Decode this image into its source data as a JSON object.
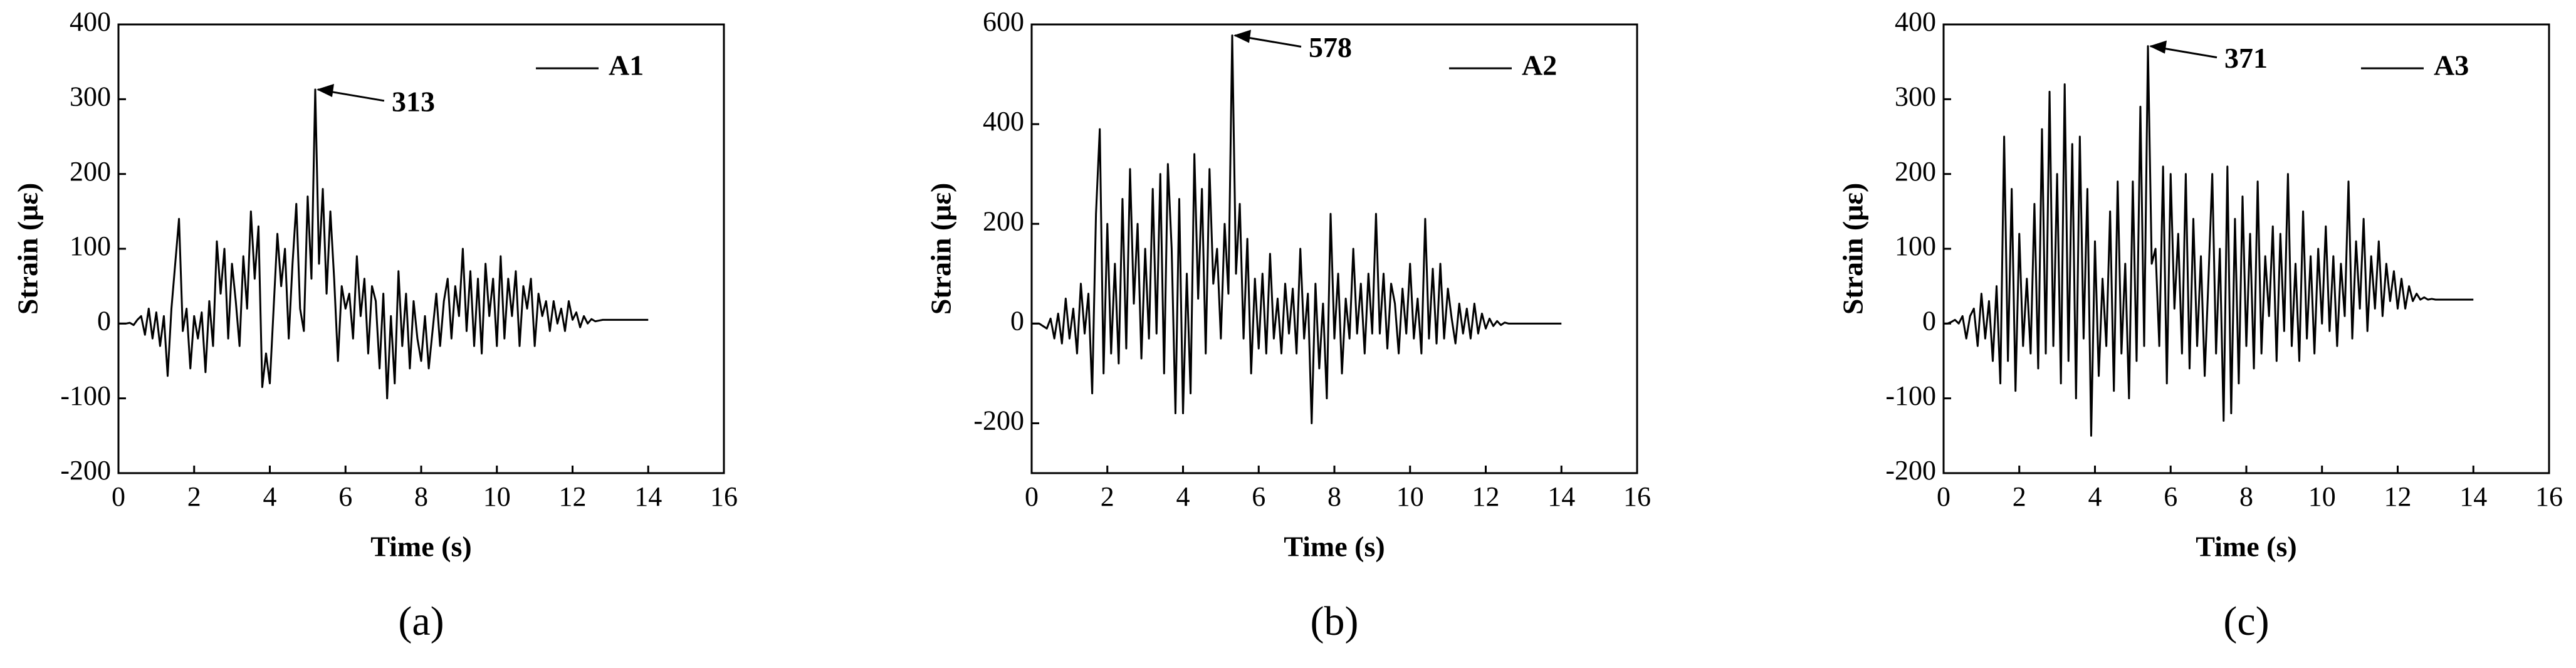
{
  "chart_data": [
    {
      "type": "line",
      "xlabel": "Time (s)",
      "ylabel": "Strain (με)",
      "caption": "(a)",
      "annotation": "313",
      "xlim": [
        0,
        16
      ],
      "xticks": [
        0,
        2,
        4,
        6,
        8,
        10,
        12,
        14,
        16
      ],
      "ylim": [
        -200,
        400
      ],
      "yticks": [
        -200,
        -100,
        0,
        100,
        200,
        300,
        400
      ],
      "legend": "upper right",
      "x": [
        0,
        0.1,
        0.2,
        0.3,
        0.4,
        0.5,
        0.6,
        0.7,
        0.8,
        0.9,
        1,
        1.1,
        1.2,
        1.3,
        1.4,
        1.5,
        1.6,
        1.7,
        1.8,
        1.9,
        2,
        2.1,
        2.2,
        2.3,
        2.4,
        2.5,
        2.6,
        2.7,
        2.8,
        2.9,
        3,
        3.1,
        3.2,
        3.3,
        3.4,
        3.5,
        3.6,
        3.7,
        3.8,
        3.9,
        4,
        4.1,
        4.2,
        4.3,
        4.4,
        4.5,
        4.6,
        4.7,
        4.8,
        4.9,
        5,
        5.1,
        5.2,
        5.3,
        5.4,
        5.5,
        5.6,
        5.7,
        5.8,
        5.9,
        6,
        6.1,
        6.2,
        6.3,
        6.4,
        6.5,
        6.6,
        6.7,
        6.8,
        6.9,
        7,
        7.1,
        7.2,
        7.3,
        7.4,
        7.5,
        7.6,
        7.7,
        7.8,
        7.9,
        8,
        8.1,
        8.2,
        8.3,
        8.4,
        8.5,
        8.6,
        8.7,
        8.8,
        8.9,
        9,
        9.1,
        9.2,
        9.3,
        9.4,
        9.5,
        9.6,
        9.7,
        9.8,
        9.9,
        10,
        10.1,
        10.2,
        10.3,
        10.4,
        10.5,
        10.6,
        10.7,
        10.8,
        10.9,
        11,
        11.1,
        11.2,
        11.3,
        11.4,
        11.5,
        11.6,
        11.7,
        11.8,
        11.9,
        12,
        12.1,
        12.2,
        12.3,
        12.4,
        12.5,
        12.6,
        12.7,
        12.8,
        12.9,
        13,
        13.1,
        13.2,
        13.3,
        13.4,
        13.5,
        13.6,
        13.7,
        13.8,
        13.9,
        14
      ],
      "series": [
        {
          "name": "A1",
          "color": "#000000",
          "values": [
            0,
            0,
            0,
            1,
            -2,
            5,
            10,
            -15,
            20,
            -20,
            15,
            -30,
            10,
            -70,
            20,
            80,
            140,
            -10,
            20,
            -60,
            10,
            -20,
            15,
            -65,
            30,
            -30,
            110,
            40,
            100,
            -20,
            80,
            30,
            -30,
            90,
            20,
            150,
            60,
            130,
            -85,
            -40,
            -80,
            20,
            120,
            50,
            100,
            -20,
            80,
            160,
            20,
            -10,
            170,
            60,
            313,
            80,
            180,
            40,
            150,
            60,
            -50,
            50,
            20,
            40,
            -20,
            90,
            10,
            60,
            -40,
            50,
            30,
            -60,
            40,
            -100,
            10,
            -80,
            70,
            -30,
            40,
            -60,
            30,
            -20,
            -50,
            10,
            -60,
            -10,
            40,
            -30,
            30,
            60,
            -20,
            50,
            10,
            100,
            -10,
            70,
            -30,
            60,
            -40,
            80,
            10,
            60,
            -30,
            90,
            -20,
            60,
            10,
            70,
            -30,
            50,
            20,
            60,
            -30,
            40,
            10,
            30,
            -10,
            30,
            0,
            20,
            -10,
            30,
            5,
            15,
            -5,
            10,
            0,
            6,
            3,
            4,
            5,
            5,
            5,
            5,
            5,
            5,
            5,
            5,
            5,
            5,
            5,
            5,
            5
          ]
        }
      ]
    },
    {
      "type": "line",
      "xlabel": "Time (s)",
      "ylabel": "Strain (με)",
      "caption": "(b)",
      "annotation": "578",
      "xlim": [
        0,
        16
      ],
      "xticks": [
        0,
        2,
        4,
        6,
        8,
        10,
        12,
        14,
        16
      ],
      "ylim": [
        -300,
        600
      ],
      "yticks": [
        -200,
        0,
        200,
        400,
        600
      ],
      "legend": "upper right",
      "x": [
        0,
        0.1,
        0.2,
        0.3,
        0.4,
        0.5,
        0.6,
        0.7,
        0.8,
        0.9,
        1,
        1.1,
        1.2,
        1.3,
        1.4,
        1.5,
        1.6,
        1.7,
        1.8,
        1.9,
        2,
        2.1,
        2.2,
        2.3,
        2.4,
        2.5,
        2.6,
        2.7,
        2.8,
        2.9,
        3,
        3.1,
        3.2,
        3.3,
        3.4,
        3.5,
        3.6,
        3.7,
        3.8,
        3.9,
        4,
        4.1,
        4.2,
        4.3,
        4.4,
        4.5,
        4.6,
        4.7,
        4.8,
        4.9,
        5,
        5.1,
        5.2,
        5.3,
        5.4,
        5.5,
        5.6,
        5.7,
        5.8,
        5.9,
        6,
        6.1,
        6.2,
        6.3,
        6.4,
        6.5,
        6.6,
        6.7,
        6.8,
        6.9,
        7,
        7.1,
        7.2,
        7.3,
        7.4,
        7.5,
        7.6,
        7.7,
        7.8,
        7.9,
        8,
        8.1,
        8.2,
        8.3,
        8.4,
        8.5,
        8.6,
        8.7,
        8.8,
        8.9,
        9,
        9.1,
        9.2,
        9.3,
        9.4,
        9.5,
        9.6,
        9.7,
        9.8,
        9.9,
        10,
        10.1,
        10.2,
        10.3,
        10.4,
        10.5,
        10.6,
        10.7,
        10.8,
        10.9,
        11,
        11.1,
        11.2,
        11.3,
        11.4,
        11.5,
        11.6,
        11.7,
        11.8,
        11.9,
        12,
        12.1,
        12.2,
        12.3,
        12.4,
        12.5,
        12.6,
        12.7,
        12.8,
        12.9,
        13,
        13.1,
        13.2,
        13.3,
        13.4,
        13.5,
        13.6,
        13.7,
        13.8,
        13.9,
        14
      ],
      "series": [
        {
          "name": "A2",
          "color": "#000000",
          "values": [
            0,
            0,
            0,
            -5,
            -10,
            10,
            -30,
            20,
            -40,
            50,
            -30,
            30,
            -60,
            80,
            -20,
            60,
            -140,
            220,
            390,
            -100,
            200,
            -60,
            120,
            -80,
            250,
            -50,
            310,
            40,
            200,
            -70,
            150,
            -30,
            270,
            -20,
            300,
            -100,
            320,
            150,
            -180,
            250,
            -180,
            100,
            -140,
            340,
            50,
            270,
            -60,
            310,
            80,
            150,
            -30,
            200,
            60,
            578,
            100,
            240,
            -30,
            170,
            -100,
            90,
            -50,
            100,
            -60,
            140,
            -30,
            50,
            -60,
            80,
            -20,
            70,
            -60,
            150,
            -30,
            60,
            -200,
            80,
            -90,
            40,
            -150,
            220,
            -30,
            100,
            -100,
            50,
            -30,
            150,
            -20,
            80,
            -60,
            100,
            -20,
            220,
            -20,
            100,
            -50,
            80,
            40,
            -60,
            70,
            -20,
            120,
            -30,
            50,
            -60,
            210,
            -30,
            110,
            -40,
            120,
            -30,
            70,
            10,
            -40,
            40,
            -20,
            30,
            -30,
            40,
            -20,
            20,
            -10,
            10,
            -5,
            5,
            -3,
            2,
            0,
            0,
            0,
            0,
            0,
            0,
            0,
            0,
            0,
            0,
            0,
            0,
            0,
            0,
            0
          ]
        }
      ]
    },
    {
      "type": "line",
      "xlabel": "Time (s)",
      "ylabel": "Strain (με)",
      "caption": "(c)",
      "annotation": "371",
      "xlim": [
        0,
        16
      ],
      "xticks": [
        0,
        2,
        4,
        6,
        8,
        10,
        12,
        14,
        16
      ],
      "ylim": [
        -200,
        400
      ],
      "yticks": [
        -200,
        -100,
        0,
        100,
        200,
        300,
        400
      ],
      "legend": "upper right",
      "x": [
        0,
        0.1,
        0.2,
        0.3,
        0.4,
        0.5,
        0.6,
        0.7,
        0.8,
        0.9,
        1,
        1.1,
        1.2,
        1.3,
        1.4,
        1.5,
        1.6,
        1.7,
        1.8,
        1.9,
        2,
        2.1,
        2.2,
        2.3,
        2.4,
        2.5,
        2.6,
        2.7,
        2.8,
        2.9,
        3,
        3.1,
        3.2,
        3.3,
        3.4,
        3.5,
        3.6,
        3.7,
        3.8,
        3.9,
        4,
        4.1,
        4.2,
        4.3,
        4.4,
        4.5,
        4.6,
        4.7,
        4.8,
        4.9,
        5,
        5.1,
        5.2,
        5.3,
        5.4,
        5.5,
        5.6,
        5.7,
        5.8,
        5.9,
        6,
        6.1,
        6.2,
        6.3,
        6.4,
        6.5,
        6.6,
        6.7,
        6.8,
        6.9,
        7,
        7.1,
        7.2,
        7.3,
        7.4,
        7.5,
        7.6,
        7.7,
        7.8,
        7.9,
        8,
        8.1,
        8.2,
        8.3,
        8.4,
        8.5,
        8.6,
        8.7,
        8.8,
        8.9,
        9,
        9.1,
        9.2,
        9.3,
        9.4,
        9.5,
        9.6,
        9.7,
        9.8,
        9.9,
        10,
        10.1,
        10.2,
        10.3,
        10.4,
        10.5,
        10.6,
        10.7,
        10.8,
        10.9,
        11,
        11.1,
        11.2,
        11.3,
        11.4,
        11.5,
        11.6,
        11.7,
        11.8,
        11.9,
        12,
        12.1,
        12.2,
        12.3,
        12.4,
        12.5,
        12.6,
        12.7,
        12.8,
        12.9,
        13,
        13.1,
        13.2,
        13.3,
        13.4,
        13.5,
        13.6,
        13.7,
        13.8,
        13.9,
        14
      ],
      "series": [
        {
          "name": "A3",
          "color": "#000000",
          "values": [
            0,
            0,
            2,
            5,
            0,
            10,
            -20,
            10,
            20,
            -30,
            40,
            -20,
            30,
            -50,
            50,
            -80,
            250,
            -50,
            180,
            -90,
            120,
            -30,
            60,
            -40,
            160,
            -60,
            260,
            -40,
            310,
            -30,
            200,
            -80,
            320,
            -50,
            240,
            -100,
            250,
            -20,
            180,
            -150,
            110,
            -70,
            60,
            -30,
            150,
            -90,
            190,
            -40,
            80,
            -100,
            190,
            -50,
            290,
            -30,
            371,
            80,
            100,
            -30,
            210,
            -80,
            200,
            20,
            120,
            -40,
            200,
            -60,
            140,
            -30,
            90,
            -70,
            60,
            200,
            -40,
            100,
            -130,
            210,
            -120,
            140,
            -80,
            170,
            -30,
            120,
            -60,
            190,
            -40,
            90,
            10,
            130,
            -50,
            120,
            -10,
            200,
            -30,
            80,
            -50,
            150,
            -20,
            90,
            -40,
            100,
            0,
            130,
            -10,
            90,
            -30,
            80,
            10,
            190,
            -20,
            110,
            20,
            140,
            -10,
            90,
            20,
            110,
            10,
            80,
            30,
            70,
            20,
            60,
            20,
            50,
            30,
            40,
            32,
            35,
            32,
            33,
            32,
            32,
            32,
            32,
            32,
            32,
            32,
            32,
            32,
            32,
            32
          ]
        }
      ]
    }
  ]
}
